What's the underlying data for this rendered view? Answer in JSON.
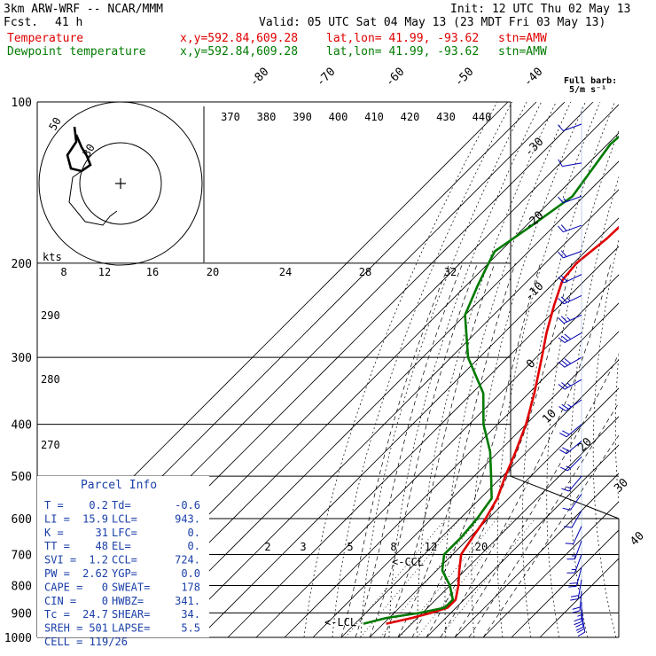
{
  "header": {
    "model": "3km ARW-WRF -- NCAR/MMM",
    "fcst_label": "Fcst.",
    "fcst_value": "41 h",
    "init": "Init: 12 UTC Thu 02 May 13",
    "valid": "Valid: 05 UTC Sat 04 May 13 (23 MDT Fri 03 May 13)",
    "temp_label": "Temperature",
    "dew_label": "Dewpoint temperature",
    "xy": "x,y=592.84,609.28",
    "latlon": "lat,lon= 41.99, -93.62",
    "stn": "stn=AMW",
    "barb_title": "Full barb:",
    "barb_units": "5/m s⁻¹",
    "temp_color": "#e00000",
    "dew_color": "#007a00"
  },
  "chart_data": {
    "type": "line",
    "subtype": "skew-T log-P",
    "y_axis_scale": "log pressure",
    "ylim": [
      1000,
      100
    ],
    "pressure_ticks": [
      "100",
      "200",
      "300",
      "400",
      "500",
      "600",
      "700",
      "800",
      "900",
      "1000"
    ],
    "isotherm_labels": [
      "-80",
      "-70",
      "-60",
      "-50",
      "-40",
      "-30",
      "-20",
      "-10",
      "0",
      "10",
      "20",
      "30",
      "40"
    ],
    "theta_labels": [
      "370",
      "380",
      "390",
      "400",
      "410",
      "420",
      "430",
      "440"
    ],
    "thetaw_labels": [
      "290",
      "280",
      "270"
    ],
    "mixing_ratio_labels": [
      "2",
      "3",
      "5",
      "8",
      "12",
      "20"
    ],
    "lcl_labels": [
      "<-LCL",
      "<-CCL"
    ],
    "series": [
      {
        "name": "Temperature",
        "color": "#e00000",
        "points": [
          {
            "p": 100,
            "t": -59
          },
          {
            "p": 130,
            "t": -57
          },
          {
            "p": 150,
            "t": -56
          },
          {
            "p": 180,
            "t": -57
          },
          {
            "p": 200,
            "t": -59
          },
          {
            "p": 215,
            "t": -58
          },
          {
            "p": 240,
            "t": -52
          },
          {
            "p": 270,
            "t": -45
          },
          {
            "p": 300,
            "t": -38
          },
          {
            "p": 350,
            "t": -28
          },
          {
            "p": 400,
            "t": -20
          },
          {
            "p": 450,
            "t": -14
          },
          {
            "p": 500,
            "t": -9
          },
          {
            "p": 550,
            "t": -4
          },
          {
            "p": 600,
            "t": -1
          },
          {
            "p": 650,
            "t": 1
          },
          {
            "p": 700,
            "t": 3
          },
          {
            "p": 750,
            "t": 8
          },
          {
            "p": 800,
            "t": 13
          },
          {
            "p": 850,
            "t": 17
          },
          {
            "p": 880,
            "t": 17
          },
          {
            "p": 900,
            "t": 13
          },
          {
            "p": 920,
            "t": 8
          },
          {
            "p": 943,
            "t": 1
          }
        ]
      },
      {
        "name": "Dewpoint temperature",
        "color": "#007a00",
        "points": [
          {
            "p": 100,
            "t": -87
          },
          {
            "p": 120,
            "t": -89
          },
          {
            "p": 150,
            "t": -84
          },
          {
            "p": 170,
            "t": -88
          },
          {
            "p": 190,
            "t": -92
          },
          {
            "p": 200,
            "t": -90
          },
          {
            "p": 220,
            "t": -86
          },
          {
            "p": 250,
            "t": -80
          },
          {
            "p": 300,
            "t": -64
          },
          {
            "p": 350,
            "t": -46
          },
          {
            "p": 400,
            "t": -35
          },
          {
            "p": 450,
            "t": -23
          },
          {
            "p": 500,
            "t": -14
          },
          {
            "p": 550,
            "t": -6
          },
          {
            "p": 600,
            "t": -4
          },
          {
            "p": 650,
            "t": -3
          },
          {
            "p": 700,
            "t": -3
          },
          {
            "p": 750,
            "t": 2
          },
          {
            "p": 800,
            "t": 10
          },
          {
            "p": 850,
            "t": 16
          },
          {
            "p": 880,
            "t": 16
          },
          {
            "p": 900,
            "t": 9
          },
          {
            "p": 920,
            "t": -1
          },
          {
            "p": 943,
            "t": -7
          }
        ]
      }
    ],
    "hodograph": {
      "units_label": "kts",
      "ring_labels": [
        "50",
        "30"
      ],
      "speed_ticks": [
        "8",
        "12",
        "16",
        "20",
        "24",
        "28",
        "32"
      ]
    },
    "wind_barbs": [
      {
        "p": 110,
        "speed": 8,
        "dir": 250
      },
      {
        "p": 130,
        "speed": 10,
        "dir": 260
      },
      {
        "p": 150,
        "speed": 15,
        "dir": 250
      },
      {
        "p": 170,
        "speed": 18,
        "dir": 250
      },
      {
        "p": 190,
        "speed": 20,
        "dir": 250
      },
      {
        "p": 210,
        "speed": 22,
        "dir": 245
      },
      {
        "p": 230,
        "speed": 24,
        "dir": 245
      },
      {
        "p": 250,
        "speed": 26,
        "dir": 245
      },
      {
        "p": 270,
        "speed": 28,
        "dir": 240
      },
      {
        "p": 300,
        "speed": 28,
        "dir": 240
      },
      {
        "p": 330,
        "speed": 26,
        "dir": 240
      },
      {
        "p": 360,
        "speed": 24,
        "dir": 235
      },
      {
        "p": 400,
        "speed": 22,
        "dir": 230
      },
      {
        "p": 430,
        "speed": 18,
        "dir": 230
      },
      {
        "p": 460,
        "speed": 16,
        "dir": 225
      },
      {
        "p": 500,
        "speed": 14,
        "dir": 220
      },
      {
        "p": 540,
        "speed": 12,
        "dir": 215
      },
      {
        "p": 580,
        "speed": 12,
        "dir": 210
      },
      {
        "p": 620,
        "speed": 12,
        "dir": 205
      },
      {
        "p": 660,
        "speed": 14,
        "dir": 200
      },
      {
        "p": 700,
        "speed": 16,
        "dir": 200
      },
      {
        "p": 740,
        "speed": 18,
        "dir": 195
      },
      {
        "p": 780,
        "speed": 20,
        "dir": 190
      },
      {
        "p": 820,
        "speed": 22,
        "dir": 185
      },
      {
        "p": 860,
        "speed": 24,
        "dir": 180
      },
      {
        "p": 880,
        "speed": 20,
        "dir": 175
      },
      {
        "p": 900,
        "speed": 18,
        "dir": 170
      }
    ]
  },
  "parcel_info": {
    "title": "Parcel Info",
    "rows": [
      {
        "k1": "T",
        "v1": "0.2",
        "k2": "Td",
        "v2": "-0.6"
      },
      {
        "k1": "LI",
        "v1": "15.9",
        "k2": "LCL",
        "v2": "943."
      },
      {
        "k1": "K",
        "v1": "31",
        "k2": "LFC",
        "v2": "0."
      },
      {
        "k1": "TT",
        "v1": "48",
        "k2": "EL",
        "v2": "0."
      },
      {
        "k1": "SVI",
        "v1": "1.2",
        "k2": "CCL",
        "v2": "724."
      },
      {
        "k1": "PW",
        "v1": "2.62",
        "k2": "YGP",
        "v2": "0.0"
      },
      {
        "k1": "CAPE",
        "v1": "0",
        "k2": "SWEAT",
        "v2": "178"
      },
      {
        "k1": "CIN",
        "v1": "0",
        "k2": "HWBZ",
        "v2": "341."
      },
      {
        "k1": "Tc",
        "v1": "24.7",
        "k2": "SHEAR",
        "v2": "34."
      },
      {
        "k1": "SREH",
        "v1": "501",
        "k2": "LAPSE",
        "v2": "5.5"
      },
      {
        "k1": "CELL",
        "v1": "119/26",
        "k2": "",
        "v2": ""
      }
    ]
  }
}
